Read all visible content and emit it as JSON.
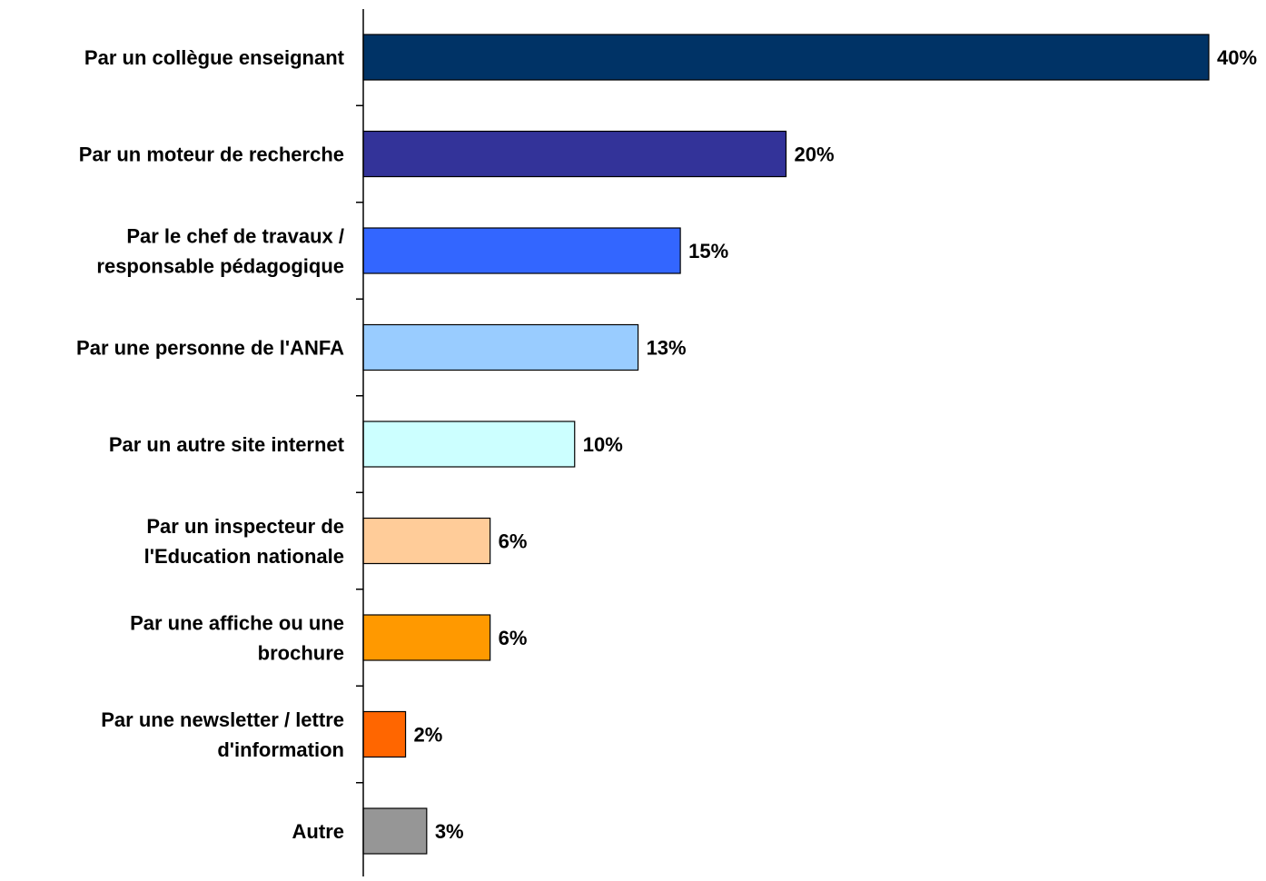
{
  "chart_data": {
    "type": "bar",
    "orientation": "horizontal",
    "categories": [
      [
        "Par un collègue enseignant"
      ],
      [
        "Par un moteur de recherche"
      ],
      [
        "Par le chef de travaux /",
        "responsable pédagogique"
      ],
      [
        "Par une personne de l'ANFA"
      ],
      [
        "Par un autre site internet"
      ],
      [
        "Par un inspecteur de",
        "l'Education nationale"
      ],
      [
        "Par une affiche ou une",
        "brochure"
      ],
      [
        "Par une newsletter / lettre",
        "d'information"
      ],
      [
        "Autre"
      ]
    ],
    "values": [
      40,
      20,
      15,
      13,
      10,
      6,
      6,
      2,
      3
    ],
    "value_labels": [
      "40%",
      "20%",
      "15%",
      "13%",
      "10%",
      "6%",
      "6%",
      "2%",
      "3%"
    ],
    "colors": [
      "#003366",
      "#333399",
      "#3366FF",
      "#99CCFF",
      "#CCFFFF",
      "#FFCC99",
      "#FF9900",
      "#FF6600",
      "#969696"
    ],
    "title": "",
    "xlabel": "",
    "ylabel": "",
    "xlim": [
      0,
      40
    ],
    "grid": false,
    "legend": "none"
  }
}
